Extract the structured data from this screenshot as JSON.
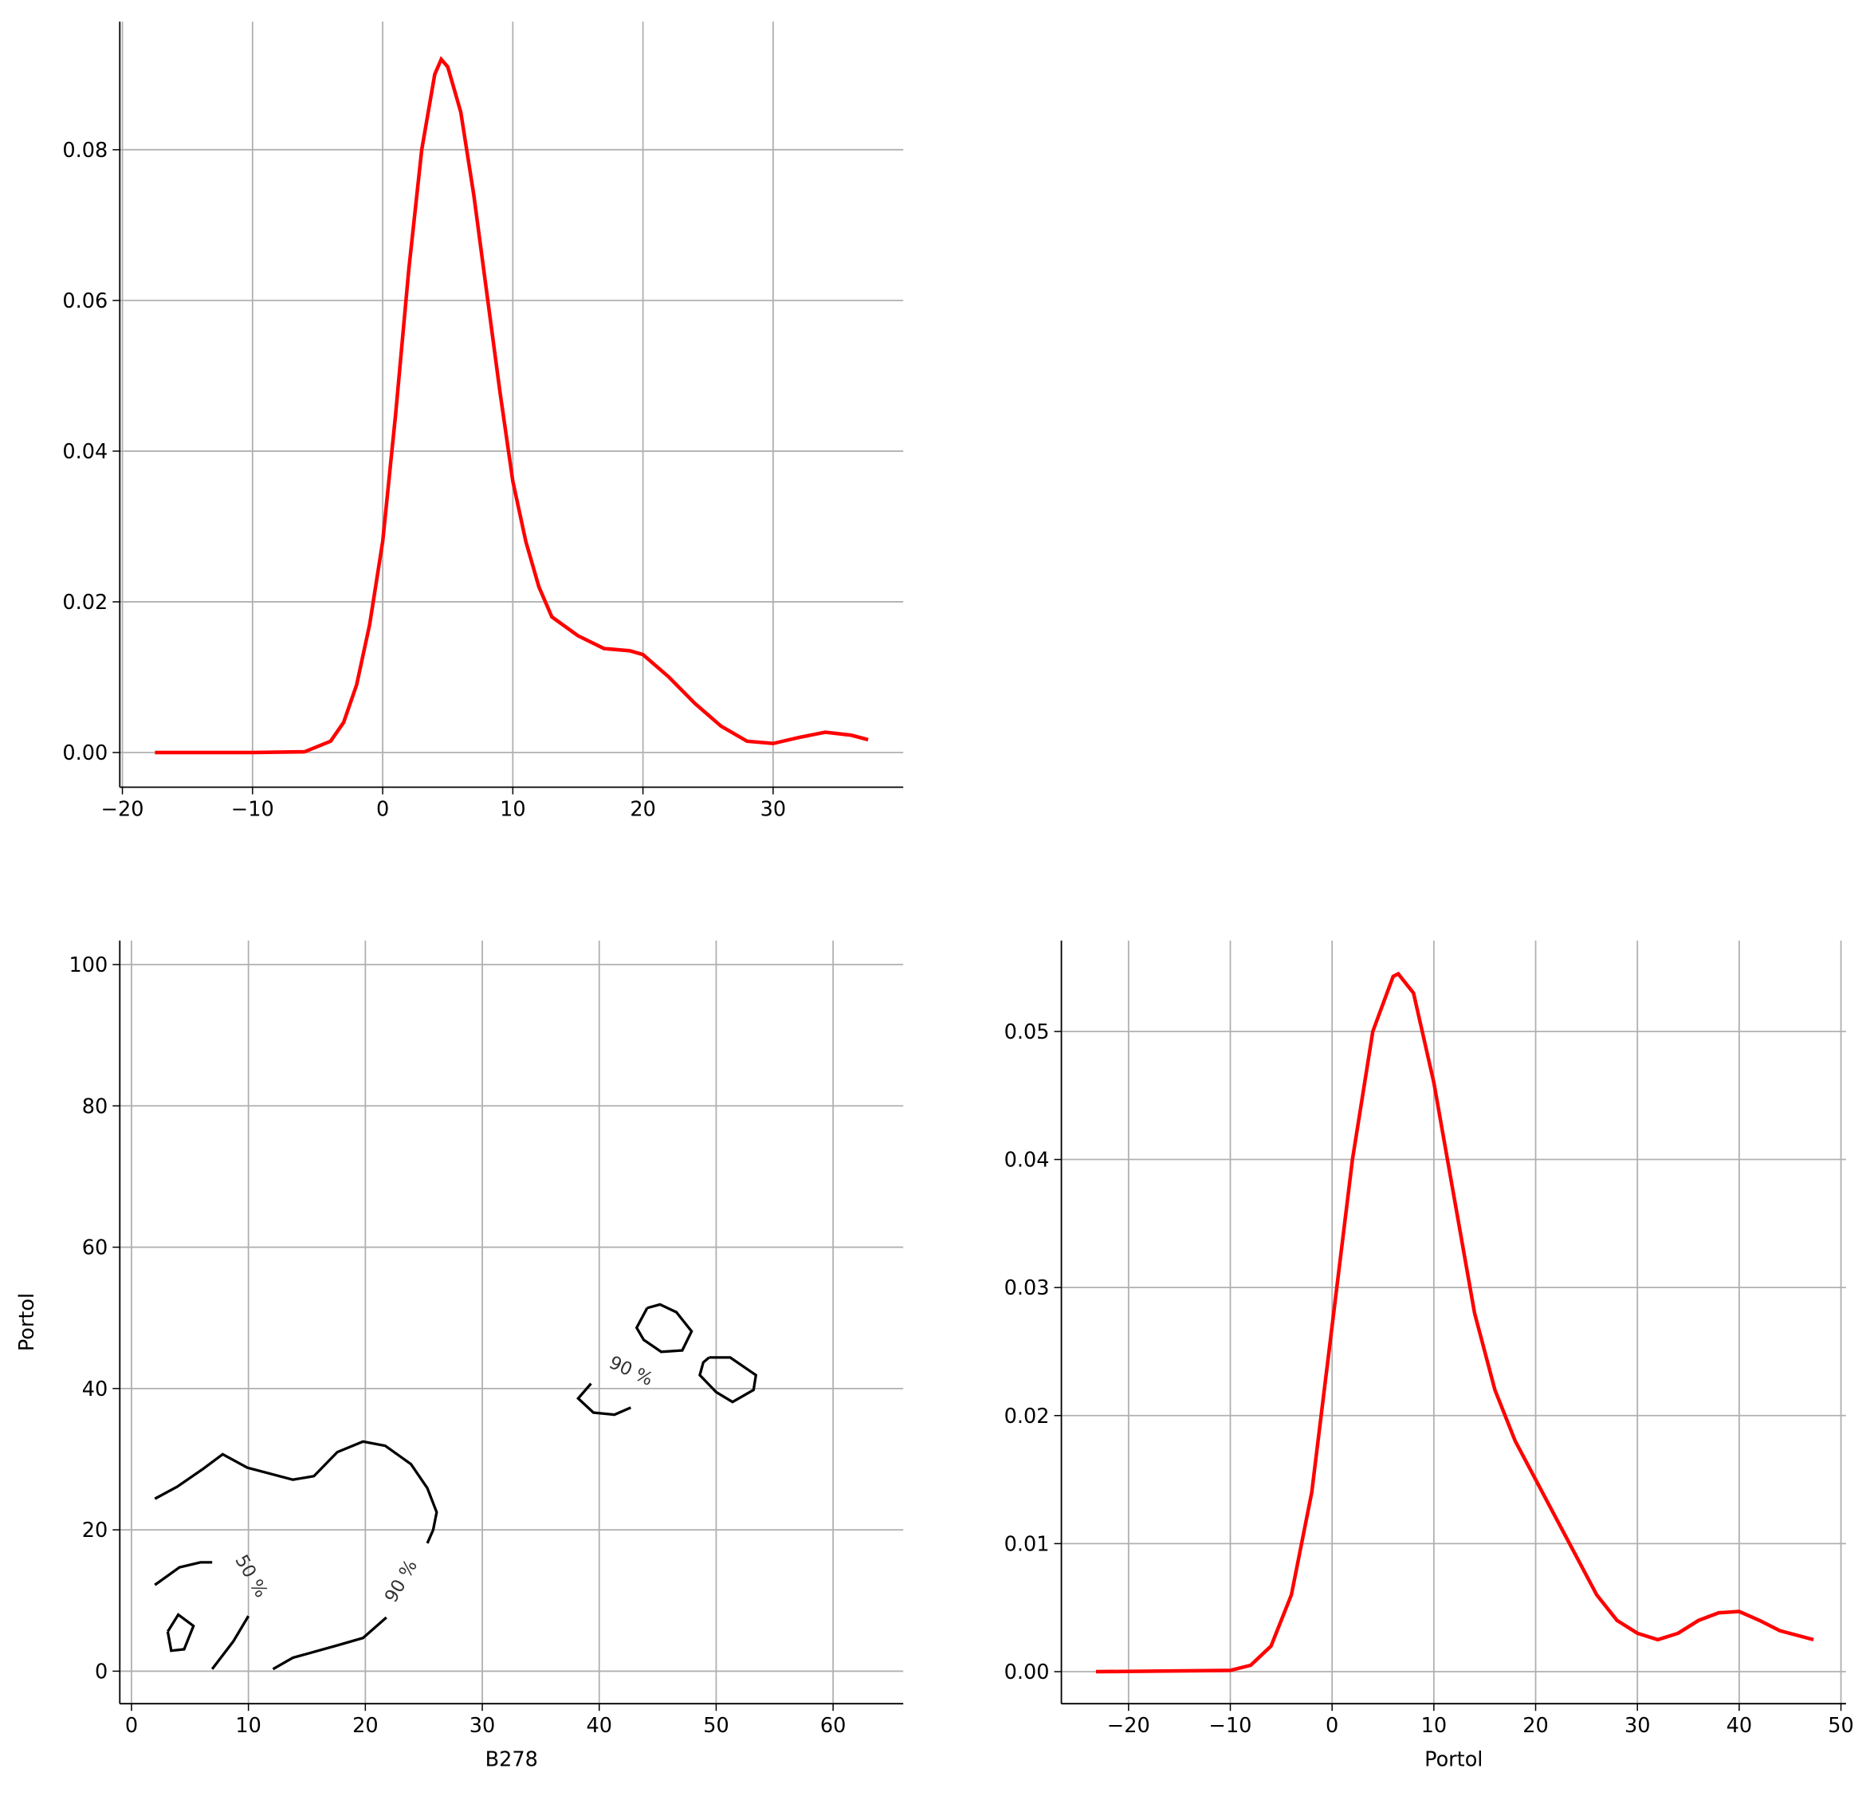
{
  "chart_data": [
    {
      "type": "line",
      "color": "#ff0000",
      "x": [
        -17.5,
        -10,
        -6,
        -4,
        -3,
        -2,
        -1,
        0,
        1,
        2,
        3,
        4,
        4.5,
        5,
        6,
        7,
        8,
        9,
        10,
        11,
        12,
        13,
        15,
        17,
        19,
        20,
        22,
        24,
        26,
        28,
        30,
        32,
        34,
        36,
        37.3
      ],
      "values": [
        0,
        0,
        0.0001,
        0.0015,
        0.004,
        0.009,
        0.017,
        0.028,
        0.045,
        0.064,
        0.08,
        0.09,
        0.092,
        0.091,
        0.085,
        0.074,
        0.061,
        0.048,
        0.036,
        0.028,
        0.022,
        0.018,
        0.0155,
        0.0138,
        0.0135,
        0.013,
        0.01,
        0.0065,
        0.0035,
        0.0015,
        0.0012,
        0.002,
        0.0027,
        0.0023,
        0.0017
      ],
      "xlim": [
        -20.2,
        40.0
      ],
      "ylim": [
        -0.0046,
        0.097
      ],
      "xticks": [
        {
          "value": -20,
          "label": "−20"
        },
        {
          "value": -10,
          "label": "−10"
        },
        0,
        10,
        20,
        30
      ],
      "yticks": [
        {
          "value": 0,
          "label": "0.00"
        },
        {
          "value": 0.02,
          "label": "0.02"
        },
        {
          "value": 0.04,
          "label": "0.04"
        },
        {
          "value": 0.06,
          "label": "0.06"
        },
        {
          "value": 0.08,
          "label": "0.08"
        }
      ],
      "grid": true
    },
    {
      "type": "contour",
      "color": "#000000",
      "xlabel": "B278",
      "ylabel": "Portol",
      "lines": [
        {
          "x": [
            2.0,
            3.9,
            6.1,
            7.8,
            9.9,
            13.8,
            15.6,
            17.6,
            19.8,
            21.7,
            23.9,
            25.3,
            26.1,
            25.8,
            25.3
          ],
          "y": [
            24.4,
            26.1,
            28.6,
            30.7,
            28.8,
            27.1,
            27.6,
            31.0,
            32.5,
            31.9,
            29.3,
            25.9,
            22.5,
            20.0,
            18.1
          ]
        },
        {
          "x": [
            21.8,
            19.8,
            17.7,
            13.8,
            12.1
          ],
          "y": [
            7.6,
            4.7,
            3.7,
            1.9,
            0.3
          ]
        },
        {
          "x": [
            2.0,
            4.1,
            5.9,
            6.9
          ],
          "y": [
            12.2,
            14.7,
            15.4,
            15.4
          ]
        },
        {
          "x": [
            10.0,
            8.7,
            6.9
          ],
          "y": [
            7.8,
            4.2,
            0.3
          ]
        },
        {
          "x": [
            3.1,
            4.0,
            5.3,
            4.5,
            3.4,
            3.1
          ],
          "y": [
            5.6,
            8.0,
            6.4,
            3.1,
            2.9,
            5.6
          ]
        },
        {
          "x": [
            39.3,
            38.2,
            39.5,
            41.3,
            42.7
          ],
          "y": [
            40.7,
            38.6,
            36.6,
            36.3,
            37.3
          ]
        },
        {
          "x": [
            44.1,
            45.2,
            46.6,
            47.9,
            47.1,
            45.3,
            43.8,
            43.2,
            44.1
          ],
          "y": [
            51.4,
            51.9,
            50.8,
            48.1,
            45.4,
            45.2,
            46.9,
            48.6,
            51.4
          ]
        },
        {
          "x": [
            49.4,
            51.2,
            53.4,
            53.2,
            51.4,
            50.0,
            48.6,
            48.9,
            49.4
          ],
          "y": [
            44.4,
            44.4,
            41.9,
            39.8,
            38.1,
            39.5,
            41.9,
            43.7,
            44.4
          ]
        }
      ],
      "labels": [
        {
          "text": "90 %",
          "x": 42.7,
          "y": 42.4
        },
        {
          "text": "50 %",
          "x": 10.2,
          "y": 13.4
        },
        {
          "text": "90 %",
          "x": 23.1,
          "y": 12.7
        }
      ],
      "xlim": [
        -1.0,
        66.0
      ],
      "ylim": [
        -4.6,
        103.4
      ],
      "xticks": [
        0,
        10,
        20,
        30,
        40,
        50,
        60
      ],
      "yticks": [
        0,
        20,
        40,
        60,
        80,
        100
      ],
      "grid": true
    },
    {
      "type": "line",
      "color": "#ff0000",
      "xlabel": "Portol",
      "x": [
        -23.2,
        -10,
        -8,
        -6,
        -4,
        -2,
        0,
        2,
        4,
        6,
        6.5,
        8,
        10,
        12,
        14,
        16,
        18,
        20,
        22,
        24,
        26,
        28,
        30,
        32,
        34,
        36,
        38,
        40,
        42,
        44,
        47.3
      ],
      "values": [
        0,
        0.0001,
        0.0005,
        0.002,
        0.006,
        0.014,
        0.027,
        0.04,
        0.05,
        0.0543,
        0.0545,
        0.053,
        0.046,
        0.037,
        0.028,
        0.022,
        0.018,
        0.015,
        0.012,
        0.009,
        0.006,
        0.004,
        0.003,
        0.0025,
        0.003,
        0.004,
        0.0046,
        0.0047,
        0.004,
        0.0032,
        0.0025
      ],
      "xlim": [
        -26.6,
        50.5
      ],
      "ylim": [
        -0.0025,
        0.0571
      ],
      "xticks": [
        {
          "value": -20,
          "label": "−20"
        },
        {
          "value": -10,
          "label": "−10"
        },
        0,
        10,
        20,
        30,
        40,
        50
      ],
      "yticks": [
        {
          "value": 0,
          "label": "0.00"
        },
        {
          "value": 0.01,
          "label": "0.01"
        },
        {
          "value": 0.02,
          "label": "0.02"
        },
        {
          "value": 0.03,
          "label": "0.03"
        },
        {
          "value": 0.04,
          "label": "0.04"
        },
        {
          "value": 0.05,
          "label": "0.05"
        }
      ],
      "grid": true
    }
  ]
}
